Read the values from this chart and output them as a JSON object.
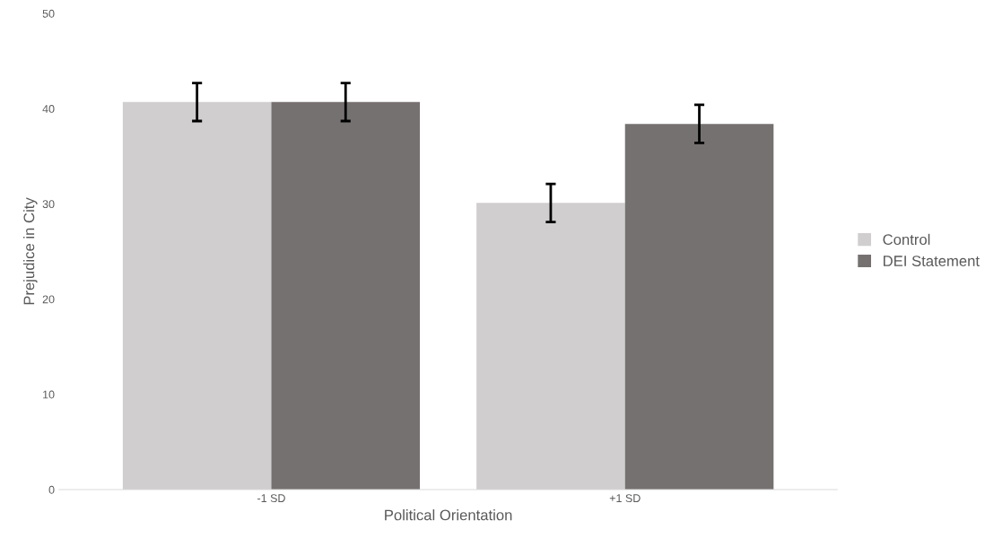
{
  "chart_data": {
    "type": "bar",
    "xlabel": "Political Orientation",
    "ylabel": "Prejudice in City",
    "categories": [
      "-1 SD",
      "+1 SD"
    ],
    "series": [
      {
        "name": "Control",
        "color": "#d0cece",
        "values": [
          40.7,
          30.1
        ],
        "errors": [
          2.0,
          2.0
        ]
      },
      {
        "name": "DEI Statement",
        "color": "#767171",
        "values": [
          40.7,
          38.4
        ],
        "errors": [
          2.0,
          2.0
        ]
      }
    ],
    "ylim": [
      0,
      50
    ],
    "yticks": [
      0,
      10,
      20,
      30,
      40,
      50
    ],
    "grid": false,
    "legend": "right"
  }
}
